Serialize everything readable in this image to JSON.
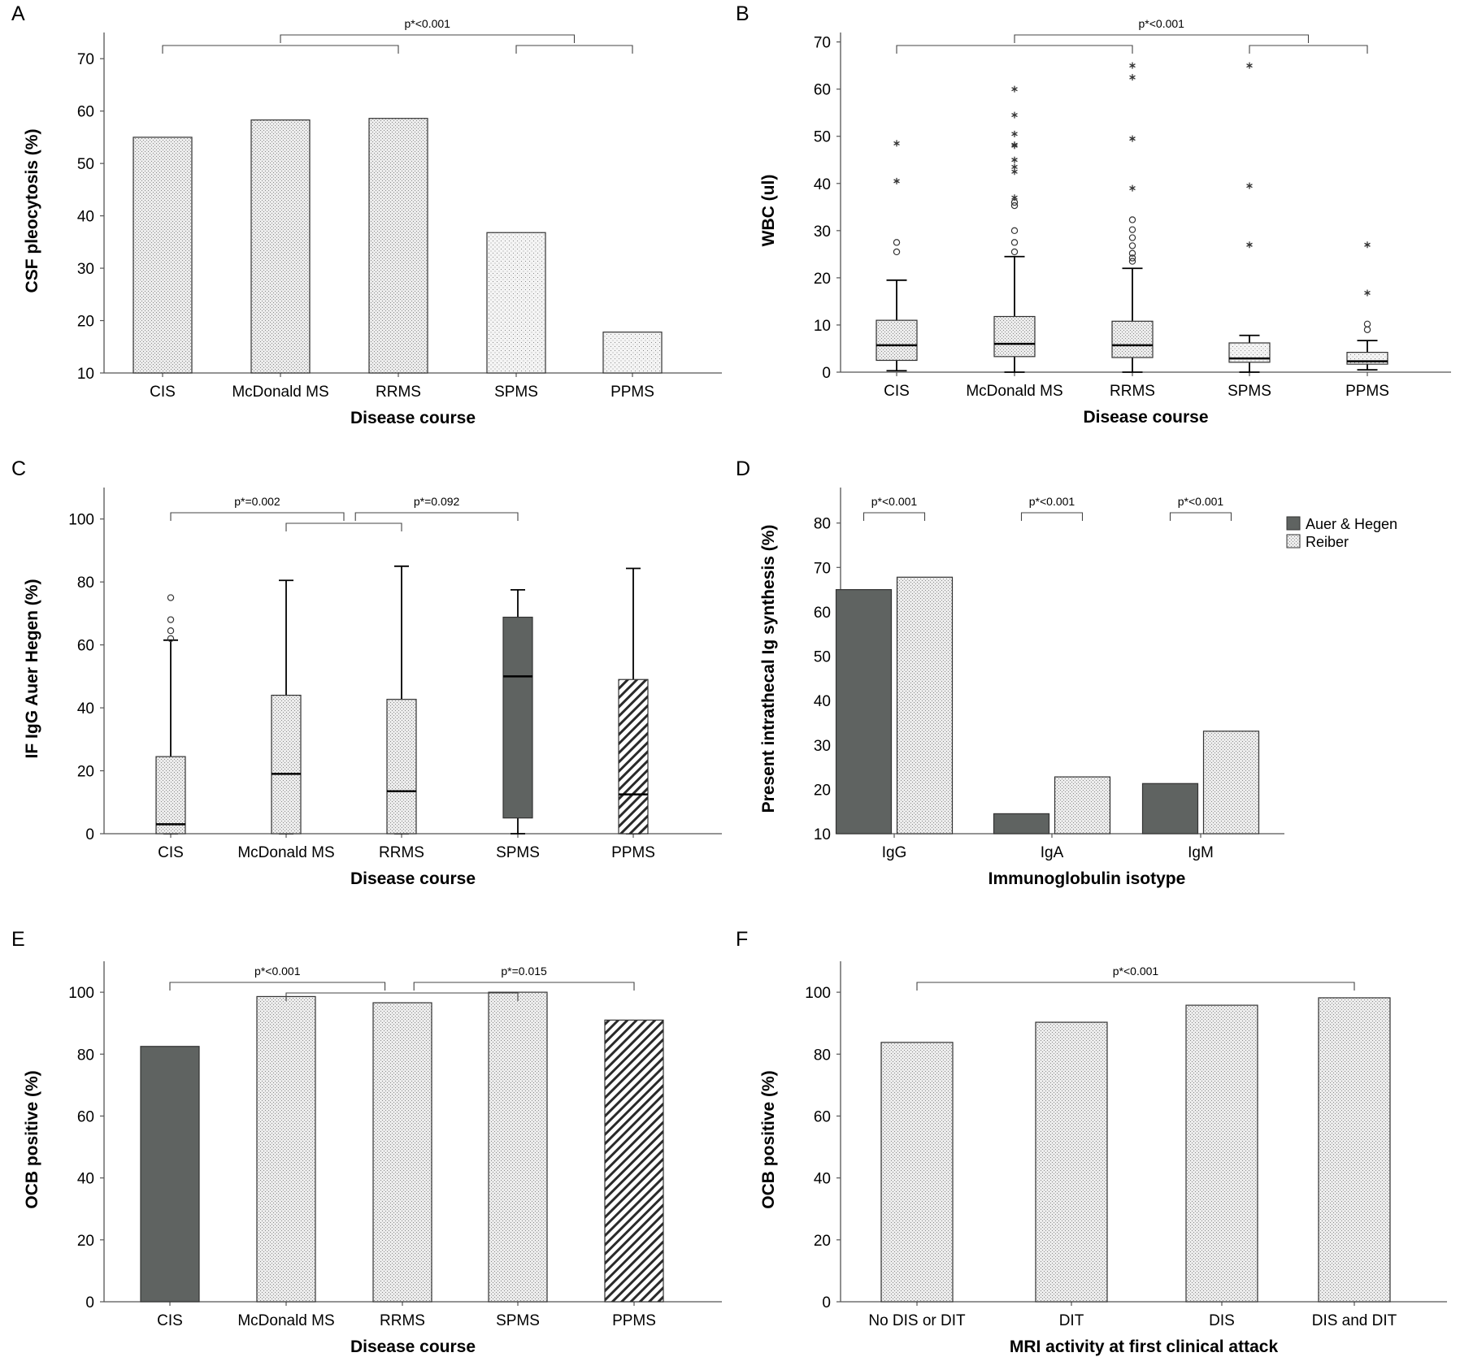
{
  "colors": {
    "dark": "#5f6361",
    "light": "#e8e8e8",
    "outline": "#333333",
    "axis": "#555555"
  },
  "chart_data": [
    {
      "id": "A",
      "letter": "A",
      "type": "bar",
      "title": "",
      "xlabel": "Disease course",
      "ylabel": "CSF pleocytosis (%)",
      "ylim": [
        10,
        75
      ],
      "yticks": [
        10,
        20,
        30,
        40,
        50,
        60,
        70
      ],
      "categories": [
        "CIS",
        "McDonald MS",
        "RRMS",
        "SPMS",
        "PPMS"
      ],
      "values": [
        55,
        58.3,
        58.6,
        36.8,
        17.8
      ],
      "patterns": [
        "cross",
        "cross",
        "cross",
        "dots",
        "dots"
      ],
      "annotations": [
        {
          "label": "p*<0.001",
          "brackets": [
            {
              "from": 0,
              "to": 2,
              "level": 1
            },
            {
              "from": 3,
              "to": 4,
              "level": 1
            },
            {
              "from": 1,
              "to": 3.5,
              "level": 2
            }
          ]
        }
      ]
    },
    {
      "id": "B",
      "letter": "B",
      "type": "box",
      "title": "",
      "xlabel": "Disease course",
      "ylabel": "WBC (ul)",
      "ylim": [
        0,
        72
      ],
      "yticks": [
        0,
        10,
        20,
        30,
        40,
        50,
        60,
        70
      ],
      "categories": [
        "CIS",
        "McDonald MS",
        "RRMS",
        "SPMS",
        "PPMS"
      ],
      "boxes": [
        {
          "whislo": 0.3,
          "q1": 2.5,
          "med": 5.7,
          "q3": 11,
          "whishi": 19.5,
          "pattern": "cross",
          "outliers": [
            25.5,
            27.5
          ],
          "extremes": [
            40.5,
            48.5
          ]
        },
        {
          "whislo": 0,
          "q1": 3.3,
          "med": 6,
          "q3": 11.8,
          "whishi": 24.5,
          "pattern": "cross",
          "outliers": [
            25.5,
            27.5,
            30,
            35.3,
            36
          ],
          "extremes": [
            37,
            42.5,
            43.5,
            45,
            48,
            48.2,
            50.5,
            54.5,
            60
          ]
        },
        {
          "whislo": 0,
          "q1": 3.1,
          "med": 5.7,
          "q3": 10.8,
          "whishi": 22,
          "pattern": "cross",
          "outliers": [
            23.5,
            24.2,
            25.2,
            26.8,
            28.5,
            30.2,
            32.3
          ],
          "extremes": [
            39,
            49.5,
            62.5,
            65
          ]
        },
        {
          "whislo": 0,
          "q1": 2.1,
          "med": 2.9,
          "q3": 6.2,
          "whishi": 7.8,
          "pattern": "dots",
          "outliers": [],
          "extremes": [
            27,
            39.5,
            65
          ]
        },
        {
          "whislo": 0.5,
          "q1": 1.7,
          "med": 2.3,
          "q3": 4.2,
          "whishi": 6.7,
          "pattern": "dots",
          "outliers": [
            9,
            10.2
          ],
          "extremes": [
            16.8,
            27
          ]
        }
      ],
      "annotations": [
        {
          "label": "p*<0.001",
          "brackets": [
            {
              "from": 0,
              "to": 2,
              "level": 1
            },
            {
              "from": 3,
              "to": 4,
              "level": 1
            },
            {
              "from": 1,
              "to": 3.5,
              "level": 2
            }
          ]
        }
      ]
    },
    {
      "id": "C",
      "letter": "C",
      "type": "box",
      "title": "",
      "xlabel": "Disease course",
      "ylabel": "IF IgG Auer Hegen (%)",
      "ylim": [
        0,
        110
      ],
      "yticks": [
        0,
        20,
        40,
        60,
        80,
        100
      ],
      "categories": [
        "CIS",
        "McDonald MS",
        "RRMS",
        "SPMS",
        "PPMS"
      ],
      "boxes": [
        {
          "whislo": 0,
          "q1": 0,
          "med": 3,
          "q3": 24.5,
          "whishi": 61.5,
          "pattern": "cross",
          "outliers": [
            62,
            64.5,
            68,
            75
          ],
          "extremes": []
        },
        {
          "whislo": 0,
          "q1": 0,
          "med": 19,
          "q3": 44,
          "whishi": 80.5,
          "pattern": "cross",
          "outliers": [],
          "extremes": []
        },
        {
          "whislo": 0,
          "q1": 0,
          "med": 13.5,
          "q3": 42.7,
          "whishi": 85,
          "pattern": "cross",
          "outliers": [],
          "extremes": []
        },
        {
          "whislo": 0,
          "q1": 5,
          "med": 50,
          "q3": 68.8,
          "whishi": 77.5,
          "pattern": "dark",
          "outliers": [],
          "extremes": []
        },
        {
          "whislo": 0,
          "q1": 0,
          "med": 12.5,
          "q3": 49,
          "whishi": 84.3,
          "pattern": "hatch",
          "outliers": [],
          "extremes": []
        }
      ],
      "annotations": [
        {
          "label": "p*=0.002",
          "brackets": [
            {
              "from": 0,
              "to": 1.5,
              "level": 1
            },
            {
              "from": 1,
              "to": 2,
              "level": 0
            }
          ]
        },
        {
          "label": "p*=0.092",
          "brackets": [
            {
              "from": 1.6,
              "to": 3,
              "level": 1
            }
          ]
        }
      ]
    },
    {
      "id": "D",
      "letter": "D",
      "type": "grouped_bar",
      "title": "",
      "xlabel": "Immunoglobulin isotype",
      "ylabel": "Present intrathecal Ig synthesis (%)",
      "ylim": [
        10,
        88
      ],
      "yticks": [
        10,
        20,
        30,
        40,
        50,
        60,
        70,
        80
      ],
      "categories": [
        "IgG",
        "IgA",
        "IgM"
      ],
      "series": [
        {
          "name": "Auer & Hegen",
          "values": [
            65,
            14.5,
            21.3
          ],
          "pattern": "dark"
        },
        {
          "name": "Reiber",
          "values": [
            67.8,
            22.8,
            33.1
          ],
          "pattern": "cross"
        }
      ],
      "legend": "top-right",
      "annotations": [
        {
          "label": "p*<0.001",
          "brackets": [
            {
              "group": 0,
              "level": 1
            }
          ]
        },
        {
          "label": "p*<0.001",
          "brackets": [
            {
              "group": 1,
              "level": 1
            }
          ]
        },
        {
          "label": "p*<0.001",
          "brackets": [
            {
              "group": 2,
              "level": 1
            }
          ]
        }
      ]
    },
    {
      "id": "E",
      "letter": "E",
      "type": "bar",
      "title": "",
      "xlabel": "Disease course",
      "ylabel": "OCB positive (%)",
      "ylim": [
        0,
        110
      ],
      "yticks": [
        0,
        20,
        40,
        60,
        80,
        100
      ],
      "categories": [
        "CIS",
        "McDonald MS",
        "RRMS",
        "SPMS",
        "PPMS"
      ],
      "values": [
        82.5,
        98.6,
        96.6,
        100,
        91
      ],
      "patterns": [
        "dark",
        "cross",
        "cross",
        "cross",
        "hatch"
      ],
      "annotations": [
        {
          "label": "p*<0.001",
          "brackets": [
            {
              "from": 0,
              "to": 1.85,
              "level": 1
            },
            {
              "from": 1,
              "to": 3,
              "level": 0
            }
          ]
        },
        {
          "label": "p*=0.015",
          "brackets": [
            {
              "from": 2.1,
              "to": 4,
              "level": 1
            }
          ]
        }
      ]
    },
    {
      "id": "F",
      "letter": "F",
      "type": "bar",
      "title": "",
      "xlabel": "MRI activity at first clinical attack",
      "ylabel": "OCB positive (%)",
      "ylim": [
        0,
        110
      ],
      "yticks": [
        0,
        20,
        40,
        60,
        80,
        100
      ],
      "categories": [
        "No DIS or DIT",
        "DIT",
        "DIS",
        "DIS and DIT"
      ],
      "values": [
        83.8,
        90.3,
        95.8,
        98.2
      ],
      "patterns": [
        "cross",
        "cross",
        "cross",
        "cross"
      ],
      "annotations": [
        {
          "label": "p*<0.001",
          "brackets": [
            {
              "from": 0,
              "to": 3,
              "level": 1
            }
          ]
        }
      ]
    }
  ]
}
